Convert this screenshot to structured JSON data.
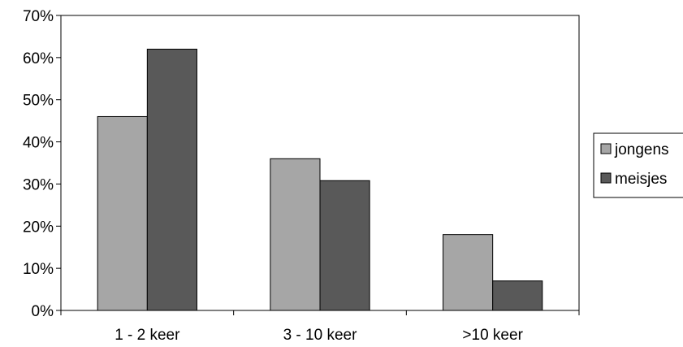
{
  "chart_data": {
    "type": "bar",
    "title": "",
    "xlabel": "",
    "ylabel": "",
    "categories": [
      "1 - 2 keer",
      "3 - 10 keer",
      ">10 keer"
    ],
    "series": [
      {
        "name": "jongens",
        "values": [
          46,
          36,
          18
        ],
        "color": "#a6a6a6"
      },
      {
        "name": "meisjes",
        "values": [
          62,
          30.8,
          7
        ],
        "color": "#595959"
      }
    ],
    "ylim": [
      0,
      70
    ],
    "yticks": [
      0,
      10,
      20,
      30,
      40,
      50,
      60,
      70
    ],
    "ytick_labels": [
      "0%",
      "10%",
      "20%",
      "30%",
      "40%",
      "50%",
      "60%",
      "70%"
    ],
    "grid": false,
    "legend_position": "right"
  }
}
